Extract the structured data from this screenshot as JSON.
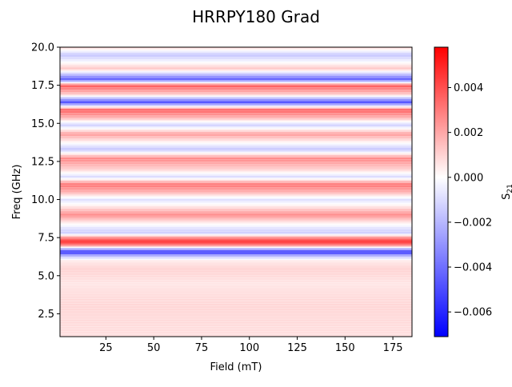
{
  "chart_data": {
    "type": "heatmap",
    "title": "HRRPY180 Grad",
    "xlabel": "Field (mT)",
    "ylabel": "Freq (GHz)",
    "xlim": [
      1,
      185
    ],
    "ylim": [
      1,
      20
    ],
    "x_ticks": [
      25,
      50,
      75,
      100,
      125,
      150,
      175
    ],
    "x_tick_labels": [
      "25",
      "50",
      "75",
      "100",
      "125",
      "150",
      "175"
    ],
    "y_ticks": [
      2.5,
      5.0,
      7.5,
      10.0,
      12.5,
      15.0,
      17.5,
      20.0
    ],
    "y_tick_labels": [
      "2.5",
      "5.0",
      "7.5",
      "10.0",
      "12.5",
      "15.0",
      "17.5",
      "20.0"
    ],
    "colorbar": {
      "label": "S21",
      "label_base": "S",
      "label_sub": "21",
      "colormap": "bwr",
      "vmin": -0.0071,
      "vmax": 0.0058,
      "ticks": [
        0.004,
        0.002,
        0.0,
        -0.002,
        -0.004,
        -0.006
      ],
      "tick_labels": [
        "0.004",
        "0.002",
        "0.000",
        "−0.002",
        "−0.004",
        "−0.006"
      ]
    },
    "note_structure": "Values vary with frequency only (horizontal bands); constant across field.",
    "bands": [
      {
        "freq_GHz": 1.2,
        "value": 0.0008
      },
      {
        "freq_GHz": 2.0,
        "value": 0.0009
      },
      {
        "freq_GHz": 3.0,
        "value": 0.001
      },
      {
        "freq_GHz": 4.0,
        "value": 0.0008
      },
      {
        "freq_GHz": 4.5,
        "value": 0.0006
      },
      {
        "freq_GHz": 5.0,
        "value": 0.0009
      },
      {
        "freq_GHz": 5.5,
        "value": 0.0011
      },
      {
        "freq_GHz": 6.0,
        "value": 0.0005
      },
      {
        "freq_GHz": 6.3,
        "value": -0.002
      },
      {
        "freq_GHz": 6.55,
        "value": -0.0062
      },
      {
        "freq_GHz": 6.75,
        "value": -0.003
      },
      {
        "freq_GHz": 7.0,
        "value": 0.003
      },
      {
        "freq_GHz": 7.25,
        "value": 0.0055
      },
      {
        "freq_GHz": 7.5,
        "value": 0.003
      },
      {
        "freq_GHz": 7.8,
        "value": -0.0015
      },
      {
        "freq_GHz": 8.1,
        "value": -0.001
      },
      {
        "freq_GHz": 8.5,
        "value": 0.0005
      },
      {
        "freq_GHz": 9.0,
        "value": 0.003
      },
      {
        "freq_GHz": 9.5,
        "value": 0.0008
      },
      {
        "freq_GHz": 10.0,
        "value": -0.001
      },
      {
        "freq_GHz": 10.5,
        "value": 0.002
      },
      {
        "freq_GHz": 11.0,
        "value": 0.0035
      },
      {
        "freq_GHz": 11.5,
        "value": -0.0012
      },
      {
        "freq_GHz": 12.0,
        "value": 0.0012
      },
      {
        "freq_GHz": 12.7,
        "value": 0.003
      },
      {
        "freq_GHz": 13.3,
        "value": -0.0018
      },
      {
        "freq_GHz": 14.3,
        "value": 0.0025
      },
      {
        "freq_GHz": 14.9,
        "value": -0.0015
      },
      {
        "freq_GHz": 15.4,
        "value": 0.002
      },
      {
        "freq_GHz": 15.9,
        "value": 0.004
      },
      {
        "freq_GHz": 16.4,
        "value": -0.0055
      },
      {
        "freq_GHz": 16.9,
        "value": 0.0012
      },
      {
        "freq_GHz": 17.5,
        "value": 0.0042
      },
      {
        "freq_GHz": 17.9,
        "value": -0.005
      },
      {
        "freq_GHz": 18.6,
        "value": 0.0015
      },
      {
        "freq_GHz": 19.5,
        "value": -0.0018
      },
      {
        "freq_GHz": 20.0,
        "value": 0.001
      }
    ]
  }
}
